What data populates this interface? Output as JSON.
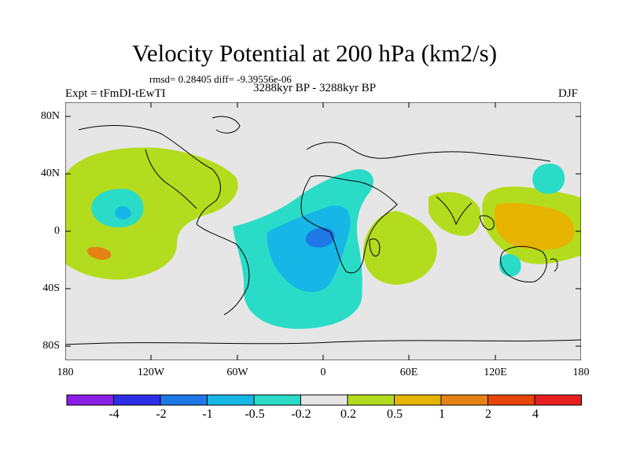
{
  "title": "Velocity Potential at 200 hPa (km2/s)",
  "stats": "rmsd= 0.28405 diff= -9.39556e-06",
  "experiment": "Expt = tFmDI-tEwTI",
  "period": "3288kyr BP - 3288kyr BP",
  "season": "DJF",
  "lat_labels": [
    "80N",
    "40N",
    "0",
    "40S",
    "80S"
  ],
  "lon_labels": [
    "180",
    "120W",
    "60W",
    "0",
    "60E",
    "120E",
    "180"
  ],
  "colorbar": {
    "colors": [
      "#8a1ee6",
      "#2d2de6",
      "#1e78e6",
      "#16b6e6",
      "#2adcc8",
      "#e6e6e6",
      "#b4dc1e",
      "#e6b400",
      "#e68214",
      "#e6460a",
      "#e61e1e"
    ],
    "labels": [
      "-4",
      "-2",
      "-1",
      "-0.5",
      "-0.2",
      "0.2",
      "0.5",
      "1",
      "2",
      "4"
    ]
  },
  "colors": {
    "background": "#e6e6e6",
    "yellow_green": "#b4dc1e",
    "cyan": "#2adcc8",
    "light_blue": "#16b6e6",
    "blue": "#1e78e6",
    "gold": "#e6b400",
    "orange": "#e68214"
  }
}
